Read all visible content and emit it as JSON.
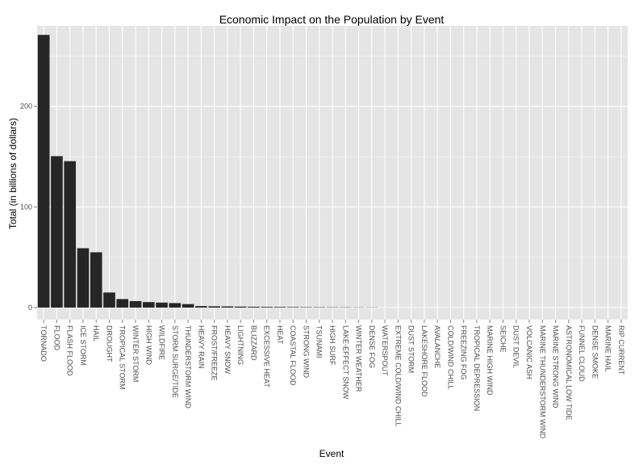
{
  "chart_data": {
    "type": "bar",
    "title": "Economic Impact on the Population by Event",
    "xlabel": "Event",
    "ylabel": "Total (in billions of dollars)",
    "ylim": [
      -12,
      280
    ],
    "yticks": [
      0,
      100,
      200
    ],
    "grid": true,
    "legend": "none",
    "colors": {
      "panel": "#e5e5e5",
      "grid_major": "#ffffff",
      "grid_minor": "#f2f2f2",
      "bar": "#262626",
      "tick_text": "#4d4d4d"
    },
    "categories": [
      "TORNADO",
      "FLOOD",
      "FLASH FLOOD",
      "ICE STORM",
      "HAIL",
      "DROUGHT",
      "TROPICAL STORM",
      "WINTER STORM",
      "HIGH WIND",
      "WILDFIRE",
      "STORM SURGE/TIDE",
      "THUNDERSTORM WIND",
      "HEAVY RAIN",
      "FROST/FREEZE",
      "HEAVY SNOW",
      "LIGHTNING",
      "BLIZZARD",
      "EXCESSIVE HEAT",
      "HEAT",
      "COASTAL FLOOD",
      "STRONG WIND",
      "TSUNAMI",
      "HIGH SURF",
      "LAKE-EFFECT SNOW",
      "WINTER WEATHER",
      "DENSE FOG",
      "WATERSPOUT",
      "EXTREME COLD/WIND CHILL",
      "DUST STORM",
      "LAKESHORE FLOOD",
      "AVALANCHE",
      "COLD/WIND CHILL",
      "FREEZING FOG",
      "TROPICAL DEPRESSION",
      "MARINE HIGH WIND",
      "SEICHE",
      "DUST DEVIL",
      "VOLCANIC ASH",
      "MARINE THUNDERSTORM WIND",
      "MARINE STRONG WIND",
      "ASTRONOMICAL LOW TIDE",
      "FUNNEL CLOUD",
      "DENSE SMOKE",
      "MARINE HAIL",
      "RIP CURRENT"
    ],
    "values": [
      271,
      150.5,
      145.5,
      59,
      55,
      15,
      8.5,
      6.5,
      5.5,
      5,
      4.5,
      3.5,
      1.5,
      1.3,
      1.2,
      1.0,
      0.8,
      0.7,
      0.6,
      0.5,
      0.4,
      0.35,
      0.3,
      0.25,
      0.2,
      0.2,
      0.05,
      0.03,
      0.02,
      0.02,
      0.01,
      0.01,
      0.01,
      0.01,
      0.01,
      0.01,
      0.01,
      0.0,
      0.0,
      0.0,
      0.0,
      0.0,
      0.0,
      0.0,
      0.0
    ]
  }
}
